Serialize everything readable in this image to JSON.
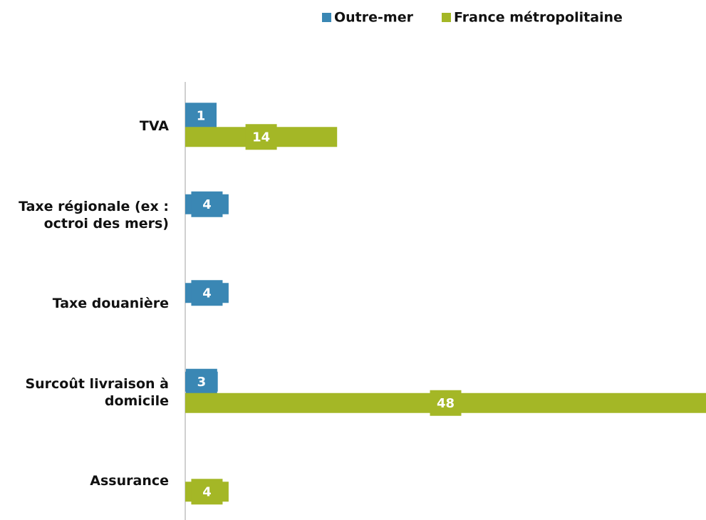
{
  "chart_data": {
    "type": "hbar",
    "categories": [
      "TVA",
      "Taxe régionale (ex : octroi des mers)",
      "Taxe douanière",
      "Surcoût livraison à domicile",
      "Assurance"
    ],
    "series": [
      {
        "name": "Outre-mer",
        "color": "#3a87b4",
        "values": [
          1,
          4,
          4,
          3,
          null
        ]
      },
      {
        "name": "France métropolitaine",
        "color": "#a4b726",
        "values": [
          14,
          null,
          null,
          48,
          4
        ]
      }
    ],
    "xlim": [
      0,
      48
    ],
    "legend": "top"
  }
}
